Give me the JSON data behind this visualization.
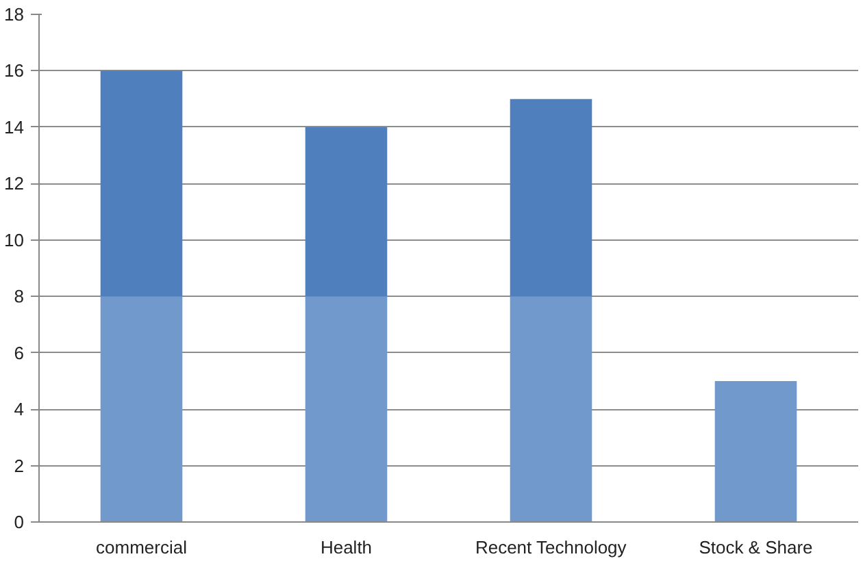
{
  "chart_data": {
    "type": "bar",
    "stacked": true,
    "categories": [
      "commercial",
      "Health",
      "Recent Technology",
      "Stock & Share"
    ],
    "series": [
      {
        "color": "#7199cc",
        "values": [
          8,
          8,
          8,
          5
        ]
      },
      {
        "color": "#4f80bd",
        "values": [
          8,
          6,
          7,
          0
        ]
      }
    ],
    "ylim": [
      0,
      18
    ],
    "yticks": [
      0,
      2,
      4,
      6,
      8,
      10,
      12,
      14,
      16,
      18
    ],
    "grid": "y"
  }
}
